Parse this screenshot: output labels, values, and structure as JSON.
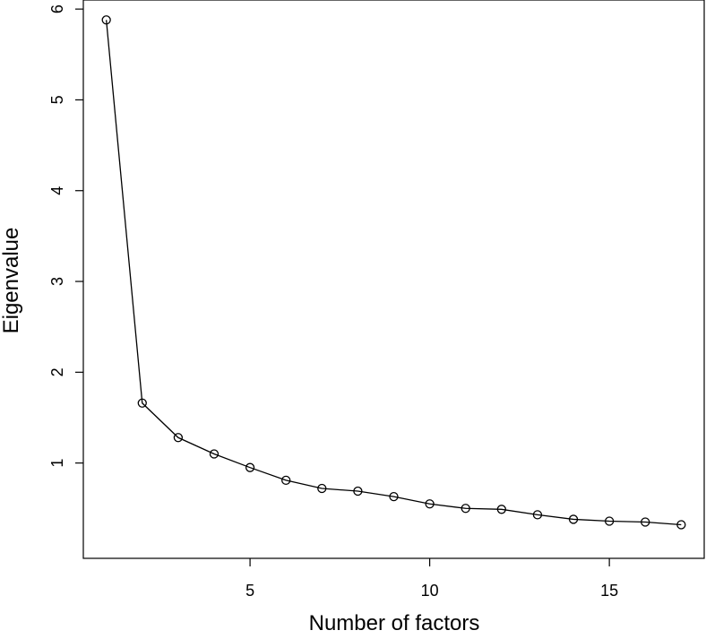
{
  "chart_data": {
    "type": "line",
    "title": "",
    "xlabel": "Number of factors",
    "ylabel": "Eigenvalue",
    "xlim": [
      0.36,
      17.64
    ],
    "ylim": [
      -0.05,
      6.1
    ],
    "x_ticks": [
      5,
      10,
      15
    ],
    "y_ticks": [
      1,
      2,
      3,
      4,
      5,
      6
    ],
    "grid": false,
    "legend": "none",
    "series": [
      {
        "x": [
          1,
          2,
          3,
          4,
          5,
          6,
          7,
          8,
          9,
          10,
          11,
          12,
          13,
          14,
          15,
          16,
          17
        ],
        "values": [
          5.88,
          1.66,
          1.28,
          1.1,
          0.95,
          0.81,
          0.72,
          0.69,
          0.63,
          0.55,
          0.5,
          0.49,
          0.43,
          0.38,
          0.36,
          0.35,
          0.32
        ]
      }
    ]
  }
}
